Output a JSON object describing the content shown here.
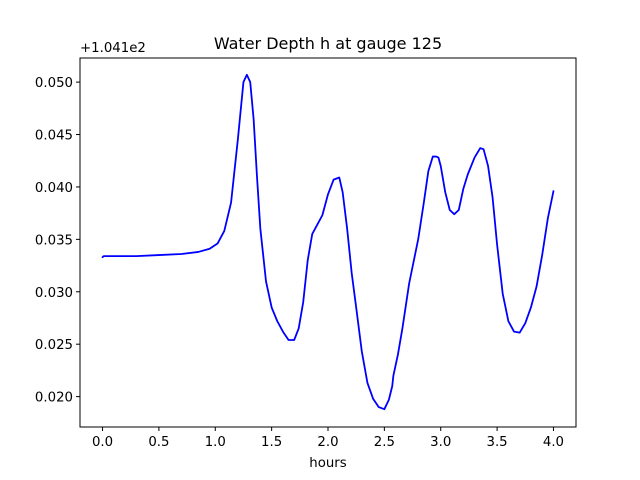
{
  "chart_data": {
    "type": "line",
    "title": "Water Depth h at gauge 125",
    "xlabel": "hours",
    "ylabel": "",
    "y_offset_label": "+1.041e2",
    "xlim": [
      -0.2,
      4.2
    ],
    "ylim": [
      0.0171,
      0.0523
    ],
    "x_ticks": [
      0.0,
      0.5,
      1.0,
      1.5,
      2.0,
      2.5,
      3.0,
      3.5,
      4.0
    ],
    "x_tick_labels": [
      "0.0",
      "0.5",
      "1.0",
      "1.5",
      "2.0",
      "2.5",
      "3.0",
      "3.5",
      "4.0"
    ],
    "y_ticks": [
      0.02,
      0.025,
      0.03,
      0.035,
      0.04,
      0.045,
      0.05
    ],
    "y_tick_labels": [
      "0.020",
      "0.025",
      "0.030",
      "0.035",
      "0.040",
      "0.045",
      "0.050"
    ],
    "grid": false,
    "series": [
      {
        "color": "#0000ff",
        "x": [
          0.0,
          0.01,
          0.1,
          0.3,
          0.5,
          0.7,
          0.85,
          0.95,
          1.02,
          1.08,
          1.14,
          1.2,
          1.25,
          1.28,
          1.31,
          1.34,
          1.37,
          1.4,
          1.45,
          1.5,
          1.55,
          1.6,
          1.65,
          1.7,
          1.74,
          1.78,
          1.82,
          1.86,
          1.9,
          1.95,
          2.0,
          2.05,
          2.1,
          2.13,
          2.17,
          2.21,
          2.25,
          2.3,
          2.35,
          2.4,
          2.45,
          2.5,
          2.54,
          2.57,
          2.58,
          2.62,
          2.66,
          2.72,
          2.8,
          2.85,
          2.89,
          2.93,
          2.96,
          2.98,
          3.0,
          3.04,
          3.08,
          3.12,
          3.16,
          3.2,
          3.24,
          3.3,
          3.35,
          3.38,
          3.42,
          3.46,
          3.5,
          3.55,
          3.6,
          3.65,
          3.7,
          3.75,
          3.8,
          3.85,
          3.9,
          3.95,
          4.0
        ],
        "y": [
          0.0333,
          0.0334,
          0.0334,
          0.0334,
          0.0335,
          0.0336,
          0.0338,
          0.0341,
          0.0346,
          0.0358,
          0.0385,
          0.0445,
          0.05,
          0.0507,
          0.05,
          0.0465,
          0.041,
          0.036,
          0.031,
          0.0285,
          0.0272,
          0.0262,
          0.0254,
          0.0254,
          0.0265,
          0.029,
          0.033,
          0.0355,
          0.0363,
          0.0373,
          0.0393,
          0.0407,
          0.0409,
          0.0395,
          0.036,
          0.0318,
          0.0285,
          0.0243,
          0.0213,
          0.0198,
          0.019,
          0.0188,
          0.0197,
          0.021,
          0.022,
          0.024,
          0.0265,
          0.0308,
          0.035,
          0.0385,
          0.0415,
          0.0429,
          0.0429,
          0.0428,
          0.042,
          0.0395,
          0.0378,
          0.0374,
          0.0378,
          0.0398,
          0.0412,
          0.0428,
          0.0437,
          0.0436,
          0.042,
          0.039,
          0.0345,
          0.0298,
          0.0272,
          0.0262,
          0.0261,
          0.027,
          0.0285,
          0.0305,
          0.0335,
          0.037,
          0.0396
        ]
      }
    ]
  }
}
